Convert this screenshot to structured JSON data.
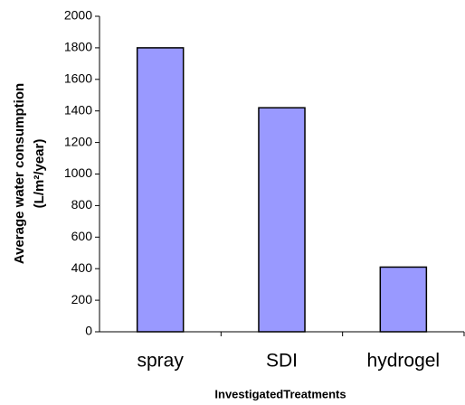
{
  "chart_data": {
    "type": "bar",
    "ylabel": [
      "Average water consumption",
      "(L/m²/year)"
    ],
    "xlabel": "InvestigatedTreatments",
    "categories": [
      "spray",
      "SDI",
      "hydrogel"
    ],
    "values": [
      1800,
      1420,
      410
    ],
    "color": "#9999ff",
    "ylim": [
      0,
      2000
    ],
    "yticks": [
      0,
      200,
      400,
      600,
      800,
      1000,
      1200,
      1400,
      1600,
      1800,
      2000
    ],
    "grid": false
  }
}
